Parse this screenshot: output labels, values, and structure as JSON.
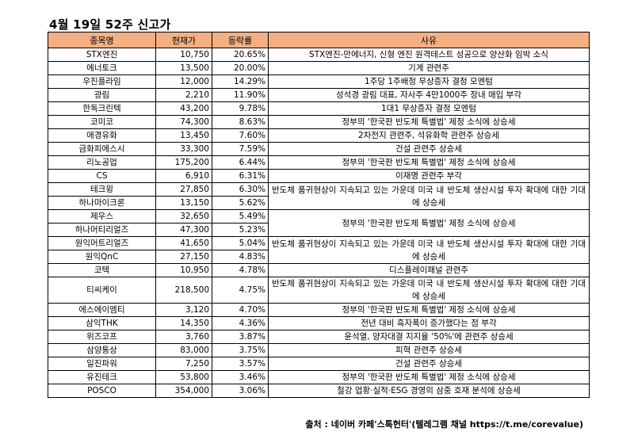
{
  "title": "4월 19일 52주 신고가",
  "headers": [
    "종목명",
    "현재가",
    "등락률",
    "사유"
  ],
  "rows": [
    {
      "name": "STX엔진",
      "price": "10,750",
      "change": "20.65%",
      "reason": "STX엔진-만에너지, 신형 엔진 원격테스트 성공으로 양산화 임박 소식",
      "span": 1
    },
    {
      "name": "에너토크",
      "price": "13,500",
      "change": "20.00%",
      "reason": "기계 관련주",
      "span": 1
    },
    {
      "name": "우진플라임",
      "price": "12,000",
      "change": "14.29%",
      "reason": "1주당 1주배정 무상증자 결정 모멘텀",
      "span": 1
    },
    {
      "name": "광림",
      "price": "2,210",
      "change": "11.90%",
      "reason": "성석경 광림 대표, 자사주 4만1000주 장내 매입 부각",
      "span": 1
    },
    {
      "name": "한독크린텍",
      "price": "43,200",
      "change": "9.78%",
      "reason": "1대1 무상증자 결정 모멘텀",
      "span": 1
    },
    {
      "name": "코미코",
      "price": "74,300",
      "change": "8.63%",
      "reason": "정부의 '한국판 반도체 특별법' 제정 소식에 상승세",
      "span": 1
    },
    {
      "name": "애경유화",
      "price": "13,450",
      "change": "7.60%",
      "reason": "2차전지 관련주, 석유화학 관련주 상승세",
      "span": 1
    },
    {
      "name": "금화피에스시",
      "price": "33,300",
      "change": "7.59%",
      "reason": "건설 관련주 상승세",
      "span": 1
    },
    {
      "name": "리노공업",
      "price": "175,200",
      "change": "6.44%",
      "reason": "정부의 '한국판 반도체 특별법' 제정 소식에 상승세",
      "span": 1
    },
    {
      "name": "CS",
      "price": "6,910",
      "change": "6.31%",
      "reason": "이재명 관련주 부각",
      "span": 1
    },
    {
      "name": "테크윙",
      "price": "27,850",
      "change": "6.30%",
      "reason": "반도체 품귀현상이 지속되고 있는 가운데 미국 내 반도체 생산시설 투자 확대에 대한 기대에 상승세",
      "span": 2
    },
    {
      "name": "하나마이크론",
      "price": "13,150",
      "change": "5.62%",
      "reason": null,
      "span": 0
    },
    {
      "name": "제우스",
      "price": "32,650",
      "change": "5.49%",
      "reason": "정부의 '한국판 반도체 특별법' 제정 소식에 상승세",
      "span": 2
    },
    {
      "name": "하나머티리얼즈",
      "price": "47,300",
      "change": "5.23%",
      "reason": null,
      "span": 0
    },
    {
      "name": "원익머트리얼즈",
      "price": "41,650",
      "change": "5.04%",
      "reason": "반도체 품귀현상이 지속되고 있는 가운데 미국 내 반도체 생산시설 투자 확대에 대한 기대에 상승세",
      "span": 2
    },
    {
      "name": "원익QnC",
      "price": "27,150",
      "change": "4.83%",
      "reason": null,
      "span": 0
    },
    {
      "name": "코텍",
      "price": "10,950",
      "change": "4.78%",
      "reason": "디스플레이패널 관련주",
      "span": 1
    },
    {
      "name": "티씨케이",
      "price": "218,500",
      "change": "4.75%",
      "reason": "반도체 품귀현상이 지속되고 있는 가운데 미국 내 반도체 생산시설 투자 확대에 대한 기대에 상승세",
      "span": 1,
      "tall": true
    },
    {
      "name": "에스에이엠티",
      "price": "3,120",
      "change": "4.70%",
      "reason": "정부의 '한국판 반도체 특별법' 제정 소식에 상승세",
      "span": 1
    },
    {
      "name": "삼익THK",
      "price": "14,350",
      "change": "4.36%",
      "reason": "전년 대비 흑자폭이 증가했다는 점 부각",
      "span": 1
    },
    {
      "name": "위즈코프",
      "price": "3,760",
      "change": "3.87%",
      "reason": "윤석열, 양자대결 지지율 '50%'에 관련주 상승세",
      "span": 1
    },
    {
      "name": "삼양통상",
      "price": "83,000",
      "change": "3.75%",
      "reason": "피혁 관련주 상승세",
      "span": 1
    },
    {
      "name": "일진파워",
      "price": "7,250",
      "change": "3.57%",
      "reason": "건설 관련주 상승세",
      "span": 1
    },
    {
      "name": "유진테크",
      "price": "53,800",
      "change": "3.46%",
      "reason": "정부의 '한국판 반도체 특별법' 제정 소식에 상승세",
      "span": 1
    },
    {
      "name": "POSCO",
      "price": "354,000",
      "change": "3.06%",
      "reason": "철강 업황·실적·ESG 경영의 삼중 호재 분석에 상승세",
      "span": 1
    }
  ],
  "footer": "출처 : 네이버 카페'스톡헌터'(텔레그램 채널 https://t.me/corevalue)",
  "colors": {
    "header_bg": "#f4b083",
    "border": "#000000"
  }
}
